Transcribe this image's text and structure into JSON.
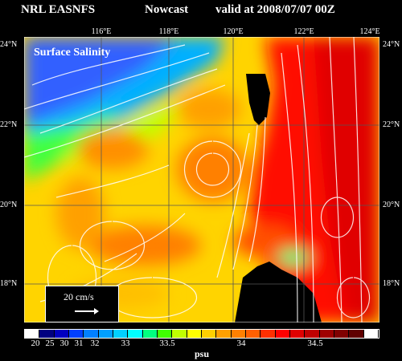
{
  "header": {
    "left": "NRL EASNFS",
    "middle": "Nowcast",
    "right": "valid at 2008/07/07 00Z"
  },
  "map": {
    "title": "Surface Salinity",
    "lon_labels": [
      "116°E",
      "118°E",
      "120°E",
      "122°E",
      "124°E"
    ],
    "lat_labels": [
      "24°N",
      "22°N",
      "20°N",
      "18°N"
    ],
    "scale_label": "20 cm/s",
    "land_color": "#000000",
    "icons": [
      "velocity-vector-arrows",
      "coastline"
    ]
  },
  "colorbar": {
    "colors": [
      "#ffffff",
      "#000080",
      "#0000c0",
      "#0040ff",
      "#0080ff",
      "#00a0ff",
      "#00d0ff",
      "#00ffff",
      "#00ff80",
      "#40ff00",
      "#c0ff00",
      "#ffff00",
      "#ffd000",
      "#ffa000",
      "#ff8000",
      "#ff6000",
      "#ff3000",
      "#ff0000",
      "#e00000",
      "#c00000",
      "#a00000",
      "#800000",
      "#600000",
      "#ffffff"
    ],
    "tick_labels": [
      "20",
      "25",
      "30",
      "31",
      "32",
      "33",
      "33.5",
      "34",
      "34.5"
    ],
    "unit": "psu"
  }
}
